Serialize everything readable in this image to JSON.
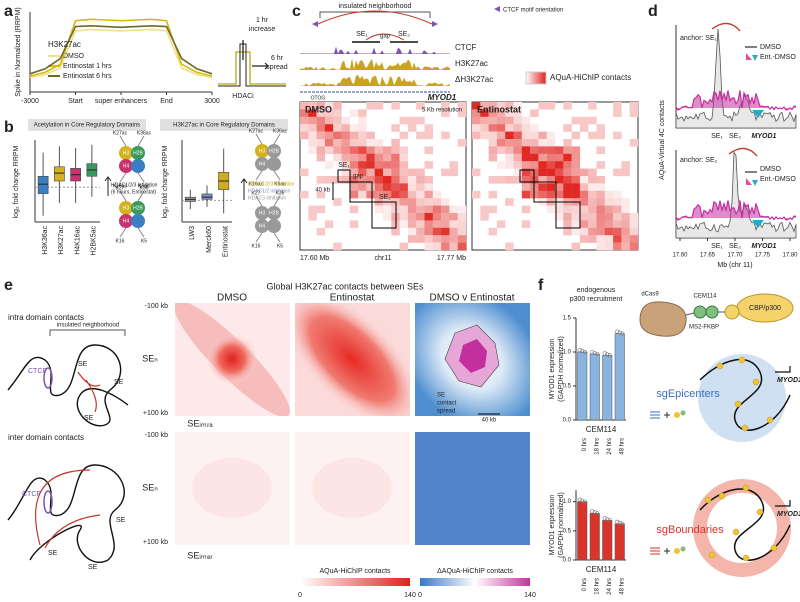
{
  "panel_labels": [
    "a",
    "b",
    "c",
    "d",
    "e",
    "f"
  ],
  "a": {
    "legend_title": "H3K27ac",
    "ylabel": "Spike in Normalized (RRPM)",
    "inset_1hr": "1 hr",
    "inset_increase": "increase",
    "inset_6hr": "6 hr",
    "inset_spread": "spread",
    "inset_hdaci": "HDACi"
  },
  "b": {
    "header_left": "Acetylation in Core Regulatory Domains",
    "header_right": "H3K27ac in Core Regulatory Domains",
    "ylabel": "log₂ fold change RRPM",
    "inhib_left": [
      "HDAC1/2/3 inhibition",
      "(6 hours, Entinostat)"
    ],
    "inhib_right": [
      "HDAC1/2/3 inhibition",
      "HDAC1/2 inhibition",
      "HDAC3 inhibition"
    ],
    "marks_acetyl": [
      "K27ac",
      "K36ac",
      "K5ac",
      "K16ac"
    ],
    "marks_plain": [
      "K27",
      "K36",
      "K5",
      "K16"
    ],
    "histones": [
      "H3",
      "H2B",
      "H4"
    ]
  },
  "c": {
    "insulated": "insulated neighborhood",
    "ctcf_motif": "CTCF motif orientation",
    "se1": "SE₁",
    "gap": "gap",
    "se2": "SE₂",
    "tracks": [
      "CTCF",
      "H3K27ac",
      "ΔH3K27ac"
    ],
    "gene_left": "OTOG",
    "gene_right": "MYOD1",
    "legend": "AQuA-HiChIP contacts",
    "dmso": "DMSO",
    "resolution": "5 Kb resolution",
    "entinostat": "Entinostat",
    "scale": "40 kb",
    "x_left": "17.60 Mb",
    "x_mid": "chr11",
    "x_right": "17.77 Mb"
  },
  "d": {
    "anchor1": "anchor: SE₁",
    "anchor2": "anchor: SE₂",
    "legend": [
      "DMSO",
      "Ent.-DMSO"
    ],
    "se1": "SE₁",
    "se2": "SE₂",
    "gene": "MYOD1",
    "ylabel": "AQuA-Virtual 4C contacts",
    "xticks": [
      "17.60",
      "17.65",
      "17.70",
      "17.75",
      "17.80"
    ],
    "xlabel": "Mb (chr 11)"
  },
  "e": {
    "title": "Global H3K27ac contacts between SEs",
    "columns": [
      "DMSO",
      "Entinostat",
      "DMSO v Entinostat"
    ],
    "intra": "intra domain contacts",
    "inter": "inter domain contacts",
    "insulated": "insulated neighborhood",
    "ctcf": "CTCF",
    "se": "SE",
    "row_top": "-100 kb",
    "row_mid": "SEₙ",
    "row_bot": "+100 kb",
    "row_intra": "SEᵢₙₜᵣₐ",
    "row_inter": "SEᵢₙₜₑᵣ",
    "spread": [
      "SE",
      "contact",
      "spread"
    ],
    "scale": "40 kb",
    "cbar1": {
      "title": "AQuA-HiChIP contacts",
      "min": 0,
      "max": 140
    },
    "cbar2": {
      "title": "ΔAQuA-HiChIP contacts",
      "min": 0,
      "max": 140
    }
  },
  "f": {
    "recruit": [
      "endogenous",
      "p300 recruitment"
    ],
    "ylabel": [
      "MYOD1 expression",
      "(GAPDH normalized)"
    ],
    "dcas9": "dCas9",
    "cem": "CEM114",
    "ms2": "MS2-FKBP",
    "cbp": "CBP/p300",
    "sg1": "sgEpicenters",
    "sg2": "sgBoundaries",
    "gene": "MYOD1"
  },
  "chart_data": [
    {
      "type": "line",
      "categories": [
        "-3000",
        null,
        null,
        "Start",
        null,
        null,
        "super enhancers",
        null,
        null,
        "End",
        null,
        null,
        "3000"
      ],
      "ylim": [
        0,
        1.1
      ],
      "series": [
        {
          "name": "DMSO",
          "color": "#efe08c",
          "values": [
            0.2,
            0.24,
            0.33,
            0.84,
            0.86,
            0.85,
            0.84,
            0.85,
            0.86,
            0.84,
            0.33,
            0.24,
            0.2
          ]
        },
        {
          "name": "Entinostat 1 hrs",
          "color": "#d8b910",
          "values": [
            0.22,
            0.27,
            0.38,
            0.98,
            1.0,
            0.99,
            0.98,
            0.99,
            1.0,
            0.98,
            0.38,
            0.27,
            0.22
          ]
        },
        {
          "name": "Entinostat 6 hrs",
          "color": "#6e6a2a",
          "values": [
            0.25,
            0.32,
            0.46,
            0.9,
            0.91,
            0.9,
            0.89,
            0.9,
            0.91,
            0.9,
            0.46,
            0.32,
            0.25
          ]
        }
      ]
    },
    {
      "type": "box",
      "categories": [
        "H3K36ac",
        "H3K27ac",
        "H4K16ac",
        "H2BK5ac"
      ],
      "colors": [
        "#3a7fc1",
        "#d4b21f",
        "#c8326e",
        "#3b9a5b"
      ],
      "ylim": [
        -2.2,
        3
      ],
      "boxes": [
        {
          "min": -1.8,
          "q1": -0.4,
          "median": 0.2,
          "q3": 0.7,
          "max": 2.2
        },
        {
          "min": -1.0,
          "q1": 0.4,
          "median": 0.9,
          "q3": 1.3,
          "max": 2.6
        },
        {
          "min": -1.0,
          "q1": 0.4,
          "median": 0.8,
          "q3": 1.2,
          "max": 2.5
        },
        {
          "min": -0.6,
          "q1": 0.7,
          "median": 1.1,
          "q3": 1.5,
          "max": 2.7
        }
      ]
    },
    {
      "type": "box",
      "categories": [
        "LW3",
        "Merck60",
        "Entinostat"
      ],
      "colors": [
        "#9a9a9a",
        "#7a8fc6",
        "#cfae1e"
      ],
      "ylim": [
        -1,
        2.8
      ],
      "boxes": [
        {
          "min": -0.4,
          "q1": -0.05,
          "median": 0.05,
          "q3": 0.15,
          "max": 0.5
        },
        {
          "min": -0.3,
          "q1": 0.05,
          "median": 0.15,
          "q3": 0.3,
          "max": 0.7
        },
        {
          "min": -0.6,
          "q1": 0.5,
          "median": 0.9,
          "q3": 1.3,
          "max": 2.4
        }
      ]
    },
    {
      "type": "bar",
      "categories": [
        "0 hrs",
        "18 hrs",
        "24 hrs",
        "48 hrs"
      ],
      "values": [
        1.0,
        0.97,
        0.95,
        1.27
      ],
      "color": "#8ab4e0",
      "xlabel": "CEM114",
      "ylim": [
        0,
        1.5
      ],
      "yticks": [
        {
          "value": 0,
          "label": "0.0"
        },
        {
          "value": 0.5,
          "label": "0.5"
        },
        {
          "value": 1,
          "label": "1.0"
        },
        {
          "value": 1.5,
          "label": "1.5"
        }
      ]
    },
    {
      "type": "bar",
      "categories": [
        "0 hrs",
        "18 hrs",
        "24 hrs",
        "48 hrs"
      ],
      "values": [
        1.0,
        0.8,
        0.68,
        0.62
      ],
      "color": "#d9342b",
      "xlabel": "CEM114",
      "ylim": [
        0,
        1.2
      ],
      "yticks": [
        {
          "value": 0,
          "label": "0.0"
        },
        {
          "value": 0.5,
          "label": "0.5"
        },
        {
          "value": 1,
          "label": "1.0"
        }
      ]
    }
  ]
}
